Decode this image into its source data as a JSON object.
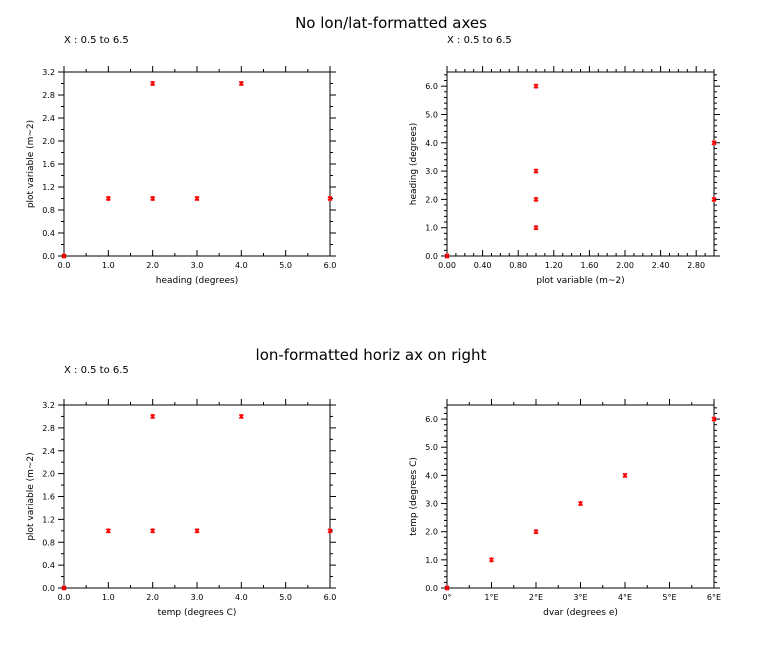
{
  "figure": {
    "title_top": "No lon/lat-formatted axes",
    "title_bottom": "lon-formatted horiz ax on right"
  },
  "chart_data": [
    {
      "type": "scatter",
      "subtitle": "X : 0.5 to 6.5",
      "xlabel": "heading (degrees)",
      "ylabel": "plot variable (m~2)",
      "xlim": [
        0,
        6
      ],
      "ylim": [
        0,
        3.2
      ],
      "xticklabels": [
        "0.0",
        "1.0",
        "2.0",
        "3.0",
        "4.0",
        "5.0",
        "6.0"
      ],
      "yticklabels": [
        "0.0",
        "0.4",
        "0.8",
        "1.2",
        "1.6",
        "2.0",
        "2.4",
        "2.8",
        "3.2"
      ],
      "color": "#ff0000",
      "points": [
        {
          "x": 0,
          "y": 0
        },
        {
          "x": 1,
          "y": 1
        },
        {
          "x": 2,
          "y": 3
        },
        {
          "x": 2,
          "y": 1
        },
        {
          "x": 3,
          "y": 1
        },
        {
          "x": 4,
          "y": 3
        },
        {
          "x": 6,
          "y": 1
        }
      ]
    },
    {
      "type": "scatter",
      "subtitle": "X : 0.5 to 6.5",
      "xlabel": "plot variable (m~2)",
      "ylabel": "heading (degrees)",
      "xlim": [
        0,
        3
      ],
      "ylim": [
        0,
        6.5
      ],
      "xticklabels": [
        "0.00",
        "0.40",
        "0.80",
        "1.20",
        "1.60",
        "2.00",
        "2.40",
        "2.80"
      ],
      "yticklabels": [
        "0.0",
        "1.0",
        "2.0",
        "3.0",
        "4.0",
        "5.0",
        "6.0"
      ],
      "color": "#ff0000",
      "points": [
        {
          "x": 0,
          "y": 0
        },
        {
          "x": 1,
          "y": 1
        },
        {
          "x": 1,
          "y": 2
        },
        {
          "x": 1,
          "y": 3
        },
        {
          "x": 1,
          "y": 6
        },
        {
          "x": 3,
          "y": 2
        },
        {
          "x": 3,
          "y": 4
        }
      ]
    },
    {
      "type": "scatter",
      "subtitle": "X : 0.5 to 6.5",
      "xlabel": "temp (degrees C)",
      "ylabel": "plot variable (m~2)",
      "xlim": [
        0,
        6
      ],
      "ylim": [
        0,
        3.2
      ],
      "xticklabels": [
        "0.0",
        "1.0",
        "2.0",
        "3.0",
        "4.0",
        "5.0",
        "6.0"
      ],
      "yticklabels": [
        "0.0",
        "0.4",
        "0.8",
        "1.2",
        "1.6",
        "2.0",
        "2.4",
        "2.8",
        "3.2"
      ],
      "color": "#ff0000",
      "points": [
        {
          "x": 0,
          "y": 0
        },
        {
          "x": 1,
          "y": 1
        },
        {
          "x": 2,
          "y": 3
        },
        {
          "x": 2,
          "y": 1
        },
        {
          "x": 3,
          "y": 1
        },
        {
          "x": 4,
          "y": 3
        },
        {
          "x": 6,
          "y": 1
        }
      ]
    },
    {
      "type": "scatter",
      "subtitle": "",
      "xlabel": "dvar (degrees e)",
      "ylabel": "temp (degrees C)",
      "xlim": [
        0,
        6
      ],
      "ylim": [
        0,
        6.5
      ],
      "xticklabels": [
        "0°",
        "1°E",
        "2°E",
        "3°E",
        "4°E",
        "5°E",
        "6°E"
      ],
      "yticklabels": [
        "0.0",
        "1.0",
        "2.0",
        "3.0",
        "4.0",
        "5.0",
        "6.0"
      ],
      "color": "#ff0000",
      "points": [
        {
          "x": 0,
          "y": 0
        },
        {
          "x": 1,
          "y": 1
        },
        {
          "x": 2,
          "y": 2
        },
        {
          "x": 3,
          "y": 3
        },
        {
          "x": 4,
          "y": 4
        },
        {
          "x": 6,
          "y": 6
        }
      ]
    }
  ]
}
